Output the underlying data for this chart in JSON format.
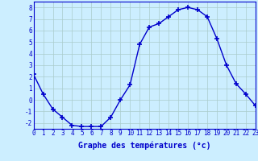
{
  "hours": [
    0,
    1,
    2,
    3,
    4,
    5,
    6,
    7,
    8,
    9,
    10,
    11,
    12,
    13,
    14,
    15,
    16,
    17,
    18,
    19,
    20,
    21,
    22,
    23
  ],
  "temperatures": [
    2.2,
    0.5,
    -0.8,
    -1.5,
    -2.2,
    -2.3,
    -2.3,
    -2.3,
    -1.5,
    0.0,
    1.3,
    4.8,
    6.3,
    6.6,
    7.2,
    7.8,
    8.0,
    7.8,
    7.2,
    5.3,
    3.0,
    1.4,
    0.5,
    -0.5
  ],
  "line_color": "#0000cc",
  "marker": "+",
  "marker_size": 4,
  "bg_color": "#cceeff",
  "grid_color": "#aacccc",
  "xlabel": "Graphe des températures (°c)",
  "xlabel_color": "#0000cc",
  "xlim": [
    0,
    23
  ],
  "ylim": [
    -2.5,
    8.5
  ],
  "yticks": [
    -2,
    -1,
    0,
    1,
    2,
    3,
    4,
    5,
    6,
    7,
    8
  ],
  "xticks": [
    0,
    1,
    2,
    3,
    4,
    5,
    6,
    7,
    8,
    9,
    10,
    11,
    12,
    13,
    14,
    15,
    16,
    17,
    18,
    19,
    20,
    21,
    22,
    23
  ],
  "tick_label_color": "#0000cc",
  "tick_fontsize": 5.5,
  "xlabel_fontsize": 7.0,
  "border_color": "#0000cc",
  "line_width": 1.0
}
